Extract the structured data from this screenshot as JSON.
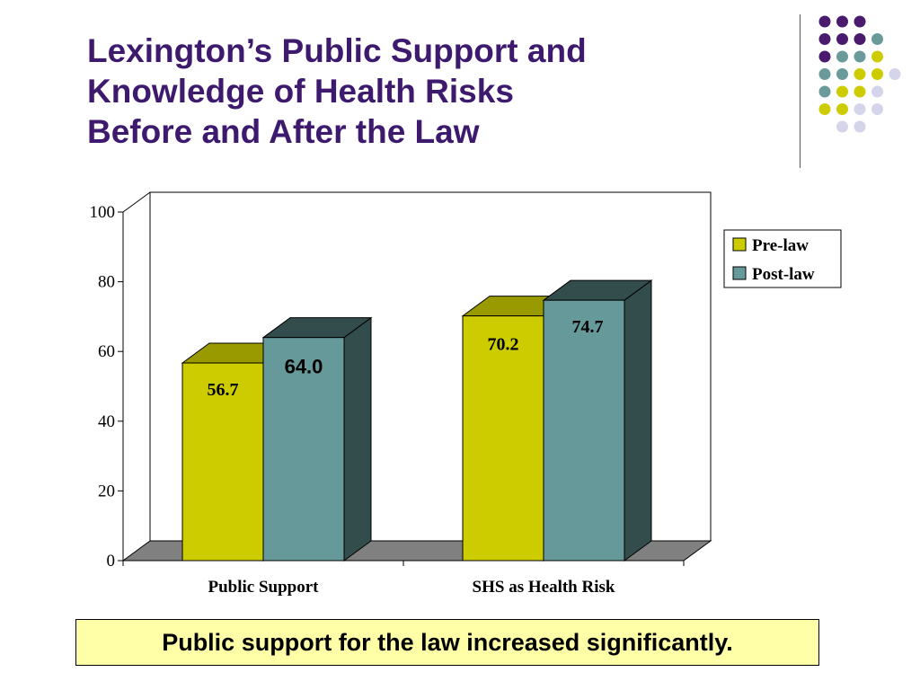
{
  "slide": {
    "title_lines": [
      "Lexington’s Public Support and",
      "Knowledge of Health Risks",
      "Before and After the Law"
    ],
    "caption": "Public support for the law increased significantly."
  },
  "decor": {
    "dot_colors": {
      "purple": "#4a1a6e",
      "teal": "#6a9a9a",
      "yellow": "#cccc00",
      "lavender": "#d4d4ea"
    },
    "dot_rows": [
      [
        "purple",
        "purple",
        "purple"
      ],
      [
        "purple",
        "purple",
        "purple",
        "teal"
      ],
      [
        "purple",
        "teal",
        "teal",
        "yellow"
      ],
      [
        "teal",
        "teal",
        "yellow",
        "yellow",
        "lavender"
      ],
      [
        "teal",
        "yellow",
        "yellow",
        "lavender"
      ],
      [
        "yellow",
        "yellow",
        "lavender",
        "lavender"
      ],
      [
        "lavender",
        "lavender"
      ]
    ]
  },
  "chart_data": {
    "type": "bar",
    "categories": [
      "Public Support",
      "SHS as Health Risk"
    ],
    "series": [
      {
        "name": "Pre-law",
        "values": [
          56.7,
          70.2
        ],
        "labels": [
          "56.7",
          "70.2"
        ],
        "color": "#cccc00",
        "dark": "#999900"
      },
      {
        "name": "Post-law",
        "values": [
          64.0,
          74.7
        ],
        "labels": [
          "64.0",
          "74.7"
        ],
        "color": "#669999",
        "dark": "#334d4d"
      }
    ],
    "yticks": [
      "0",
      "20",
      "40",
      "60",
      "80",
      "100"
    ],
    "ylim": [
      0,
      100
    ],
    "grid": false,
    "three_d": true,
    "legend_position": "right",
    "floor_color": "#808080"
  }
}
